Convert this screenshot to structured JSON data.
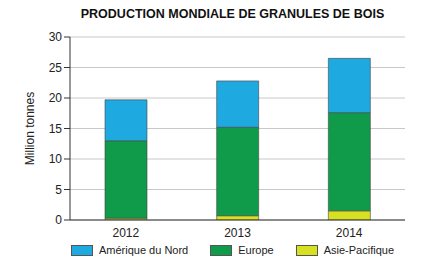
{
  "chart_data": {
    "type": "bar",
    "title": "PRODUCTION MONDIALE DE GRANULES DE BOIS",
    "y_label": "Million tonnes",
    "categories": [
      "2012",
      "2013",
      "2014"
    ],
    "series": [
      {
        "name": "Amérique du Nord",
        "color": "#1fa9e1",
        "values": [
          6.7,
          7.6,
          8.9
        ]
      },
      {
        "name": "Europe",
        "color": "#0f9b4a",
        "values": [
          12.7,
          14.5,
          16.1
        ]
      },
      {
        "name": "Asie-Pacifique",
        "color": "#d7e021",
        "values": [
          0.3,
          0.7,
          1.5
        ]
      }
    ],
    "ylim": [
      0,
      30
    ],
    "yticks": [
      0,
      5,
      10,
      15,
      20,
      25,
      30
    ],
    "grid": true,
    "stacked": true,
    "legend": "bottom"
  }
}
